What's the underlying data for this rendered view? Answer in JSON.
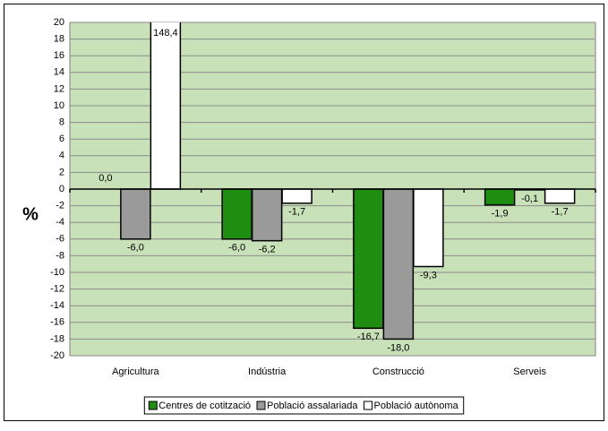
{
  "chart_data": {
    "type": "bar",
    "y_label": "%",
    "categories": [
      "Agricultura",
      "Indústria",
      "Construcció",
      "Serveis"
    ],
    "series": [
      {
        "name": "Centres de cotització",
        "color": "#1f8c12",
        "values": [
          0.0,
          -6.0,
          -16.7,
          -1.9
        ],
        "value_labels": [
          "0,0",
          "-6,0",
          "-16,7",
          "-1,9"
        ]
      },
      {
        "name": "Població assalariada",
        "color": "#9a9a9a",
        "values": [
          -6.0,
          -6.2,
          -18.0,
          -0.1
        ],
        "value_labels": [
          "-6,0",
          "-6,2",
          "-18,0",
          "-0,1"
        ]
      },
      {
        "name": "Població autònoma",
        "color": "#ffffff",
        "values": [
          148.4,
          -1.7,
          -9.3,
          -1.7
        ],
        "value_labels": [
          "148,4",
          "-1,7",
          "-9,3",
          "-1,7"
        ]
      }
    ],
    "ylim": [
      -20,
      20
    ],
    "yticks": [
      -20,
      -18,
      -16,
      -14,
      -12,
      -10,
      -8,
      -6,
      -4,
      -2,
      0,
      2,
      4,
      6,
      8,
      10,
      12,
      14,
      16,
      18,
      20
    ],
    "grid": true,
    "plot_background": "#c9e1b9",
    "legend": "bottom"
  }
}
